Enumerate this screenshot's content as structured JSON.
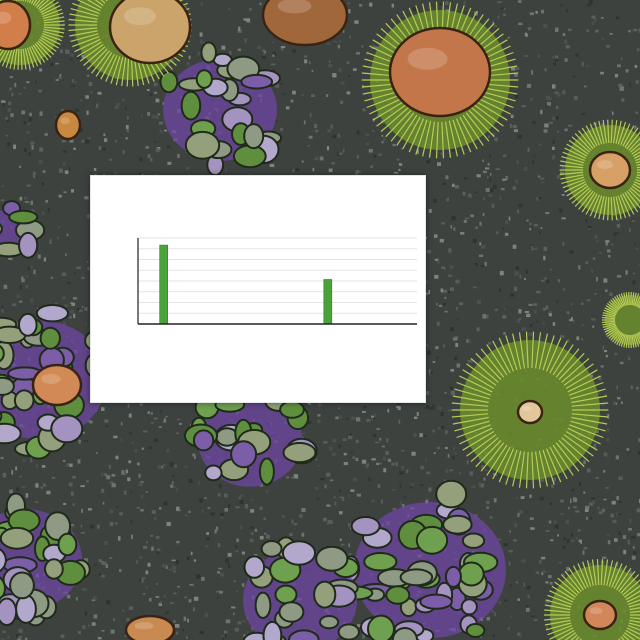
{
  "chart_data": {
    "type": "bar",
    "title": "",
    "subtitle": "",
    "xlabel": "",
    "ylabel": "",
    "categories": [
      "",
      "",
      "",
      "",
      "",
      "",
      "",
      ""
    ],
    "values": [
      78,
      0,
      0,
      0,
      0,
      44,
      0,
      0
    ],
    "ylim": [
      0,
      85
    ],
    "grid": true,
    "legend": "none",
    "bar_color": "#4aa33a"
  },
  "colors": {
    "background": "#3d423f",
    "card": "#ffffff",
    "bar": "#4aa33a",
    "grid": "#e3e3e3"
  }
}
